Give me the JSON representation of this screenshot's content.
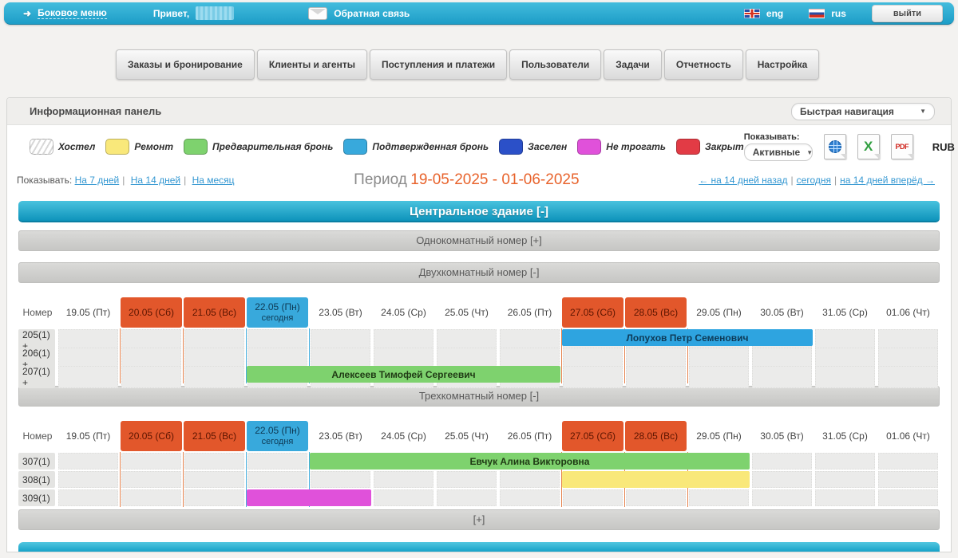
{
  "topbar": {
    "side_menu": "Боковое меню",
    "greeting": "Привет,",
    "feedback": "Обратная связь",
    "lang_eng": "eng",
    "lang_rus": "rus",
    "logout": "выйти"
  },
  "nav_tabs": [
    "Заказы и бронирование",
    "Клиенты и агенты",
    "Поступления и платежи",
    "Пользователи",
    "Задачи",
    "Отчетность",
    "Настройка"
  ],
  "panel_header": {
    "title": "Информационная панель",
    "quick_nav": "Быстрая навигация"
  },
  "legend": [
    {
      "label": "Хостел",
      "type": "hatch",
      "color": ""
    },
    {
      "label": "Ремонт",
      "type": "solid",
      "color": "#f9e87a"
    },
    {
      "label": "Предварительная бронь",
      "type": "solid",
      "color": "#7ed26e"
    },
    {
      "label": "Подтвержденная бронь",
      "type": "solid",
      "color": "#38a9dc"
    },
    {
      "label": "Заселен",
      "type": "solid",
      "color": "#2b50c8"
    },
    {
      "label": "Не трогать",
      "type": "solid",
      "color": "#e051da"
    },
    {
      "label": "Закрыт",
      "type": "solid",
      "color": "#e23b45"
    }
  ],
  "toolbar": {
    "show_label": "Показывать:",
    "filter_value": "Активные",
    "currency": "RUB"
  },
  "period_bar": {
    "show_label": "Показывать:",
    "range_links": [
      "На 7 дней",
      "На 14 дней",
      "На месяц"
    ],
    "period_label": "Период",
    "period_value": "19-05-2025 - 01-06-2025",
    "nav_links": [
      "← на 14 дней назад",
      "сегодня",
      "на 14 дней вперёд →"
    ]
  },
  "building_header": "Центральное здание [-]",
  "collapsed_sections": {
    "one_room": "Однокомнатный номер [+]",
    "more": "[+]"
  },
  "calendar": {
    "number_col_label": "Номер",
    "days": [
      {
        "label": "19.05 (Пт)",
        "type": "normal"
      },
      {
        "label": "20.05 (Сб)",
        "type": "weekend"
      },
      {
        "label": "21.05 (Вс)",
        "type": "weekend"
      },
      {
        "label": "22.05 (Пн)",
        "type": "today",
        "sub": "сегодня"
      },
      {
        "label": "23.05 (Вт)",
        "type": "normal"
      },
      {
        "label": "24.05 (Ср)",
        "type": "normal"
      },
      {
        "label": "25.05 (Чт)",
        "type": "normal"
      },
      {
        "label": "26.05 (Пт)",
        "type": "normal"
      },
      {
        "label": "27.05 (Сб)",
        "type": "weekend"
      },
      {
        "label": "28.05 (Вс)",
        "type": "weekend"
      },
      {
        "label": "29.05 (Пн)",
        "type": "normal"
      },
      {
        "label": "30.05 (Вт)",
        "type": "normal"
      },
      {
        "label": "31.05 (Ср)",
        "type": "normal"
      },
      {
        "label": "01.06 (Чт)",
        "type": "normal"
      }
    ],
    "tables": [
      {
        "section_title": "Двухкомнатный номер [-]",
        "rows": [
          {
            "room": "205(1) +",
            "bookings": [
              {
                "guest": "Лопухов Петр Семенович",
                "status": "Подтвержденная бронь",
                "start_index": 8,
                "span": 4,
                "color": "#2ea4e0",
                "text_color": "#0d3a57"
              }
            ]
          },
          {
            "room": "206(1) +",
            "bookings": []
          },
          {
            "room": "207(1) +",
            "bookings": [
              {
                "guest": "Алексеев Тимофей Сергеевич",
                "status": "Предварительная бронь",
                "start_index": 3,
                "span": 5,
                "color": "#7ed26e",
                "text_color": "#1f3a14"
              }
            ]
          }
        ]
      },
      {
        "section_title": "Трехкомнатный номер [-]",
        "rows": [
          {
            "room": "307(1)",
            "bookings": [
              {
                "guest": "Евчук Алина Викторовна",
                "status": "Предварительная бронь",
                "start_index": 4,
                "span": 7,
                "color": "#7ed26e",
                "text_color": "#1f3a14"
              }
            ]
          },
          {
            "room": "308(1)",
            "bookings": [
              {
                "guest": "",
                "status": "Ремонт",
                "start_index": 8,
                "span": 3,
                "color": "#f9e87a",
                "text_color": "#5c5318"
              }
            ]
          },
          {
            "room": "309(1)",
            "bookings": [
              {
                "guest": "",
                "status": "Не трогать",
                "start_index": 3,
                "span": 2,
                "color": "#e051da",
                "text_color": "#5a0d56"
              }
            ]
          }
        ]
      }
    ]
  },
  "colors": {
    "topbar_teal": "#2aaad2",
    "weekend_orange": "#e2572b",
    "today_blue": "#38a9dc",
    "period_orange": "#e8632c",
    "building_teal": "#14a0c4"
  }
}
